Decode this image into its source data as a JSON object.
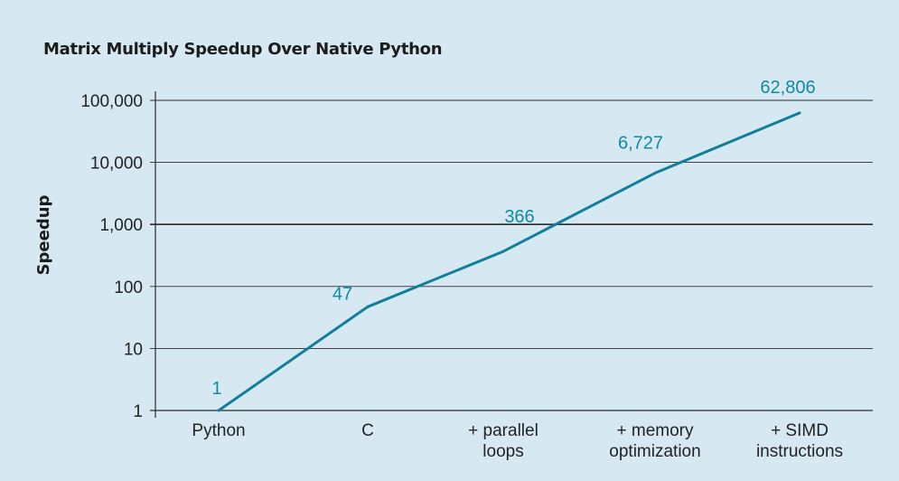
{
  "chart_data": {
    "type": "line",
    "title": "Matrix Multiply Speedup Over Native Python",
    "xlabel": "",
    "ylabel": "Speedup",
    "y_scale": "log",
    "ylim": [
      1,
      100000
    ],
    "y_ticks": [
      1,
      10,
      100,
      1000,
      10000,
      100000
    ],
    "y_tick_labels": [
      "1",
      "10",
      "100",
      "1,000",
      "10,000",
      "100,000"
    ],
    "categories": [
      [
        "Python"
      ],
      [
        "C"
      ],
      [
        "+ parallel",
        "loops"
      ],
      [
        "+ memory",
        "optimization"
      ],
      [
        "+ SIMD",
        "instructions"
      ]
    ],
    "values": [
      1,
      47,
      366,
      6727,
      62806
    ],
    "data_labels": [
      "1",
      "47",
      "366",
      "6,727",
      "62,806"
    ],
    "grid": true,
    "legend": "none",
    "colors": {
      "line": "#0f7f9a",
      "data_label": "#0f8aa3",
      "grid": "#2b2b2b",
      "background": "#d6e9f3"
    }
  }
}
